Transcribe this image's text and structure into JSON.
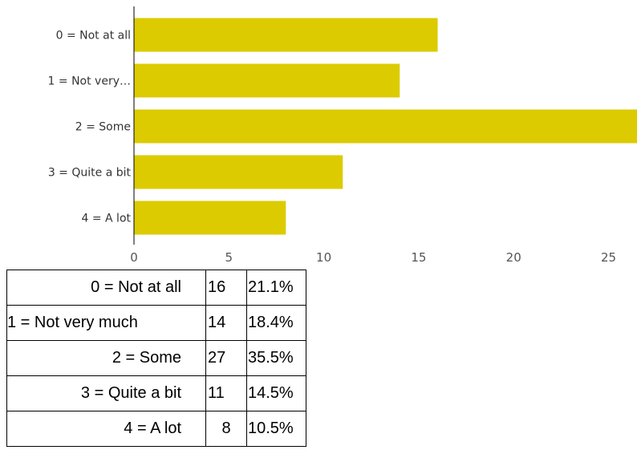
{
  "chart_data": {
    "type": "bar",
    "orientation": "horizontal",
    "categories": [
      "0 = Not at all",
      "1 = Not very…",
      "2 = Some",
      "3 = Quite a bit",
      "4 = A lot"
    ],
    "values": [
      16,
      14,
      27,
      11,
      8
    ],
    "xlim": [
      0,
      26.5
    ],
    "xticks": [
      0,
      5,
      10,
      15,
      20,
      25
    ],
    "bar_color": "#dccb00",
    "grid": false,
    "title": "",
    "xlabel": "",
    "ylabel": ""
  },
  "table": {
    "rows": [
      {
        "label": "0 = Not at all",
        "count": "16",
        "percent": "21.1%"
      },
      {
        "label": "1 = Not very much",
        "count": "14",
        "percent": "18.4%"
      },
      {
        "label": "2 = Some",
        "count": "27",
        "percent": "35.5%"
      },
      {
        "label": "3 = Quite a bit",
        "count": "11",
        "percent": "14.5%"
      },
      {
        "label": "4 = A lot",
        "count": "8",
        "percent": "10.5%"
      }
    ]
  }
}
